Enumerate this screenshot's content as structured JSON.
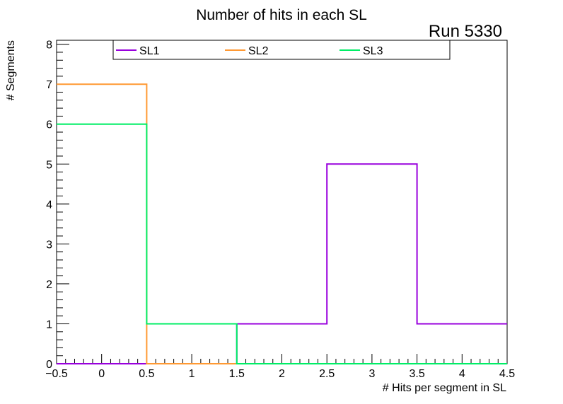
{
  "chart_data": {
    "type": "step-histogram",
    "title": "Number of hits in each SL",
    "run_label": "Run 5330",
    "xlabel": "# Hits per segment in SL",
    "ylabel": "# Segments",
    "xlim": [
      -0.5,
      4.5
    ],
    "ylim": [
      0,
      8.1
    ],
    "x_ticks": [
      -0.5,
      0,
      0.5,
      1,
      1.5,
      2,
      2.5,
      3,
      3.5,
      4,
      4.5
    ],
    "x_tick_labels": [
      "−0.5",
      "0",
      "0.5",
      "1",
      "1.5",
      "2",
      "2.5",
      "3",
      "3.5",
      "4",
      "4.5"
    ],
    "y_ticks": [
      0,
      1,
      2,
      3,
      4,
      5,
      6,
      7,
      8
    ],
    "y_tick_labels": [
      "0",
      "1",
      "2",
      "3",
      "4",
      "5",
      "6",
      "7",
      "8"
    ],
    "bin_edges": [
      -0.5,
      0.5,
      1.5,
      2.5,
      3.5,
      4.5
    ],
    "series": [
      {
        "name": "SL1",
        "color": "#9900dd",
        "values": [
          0,
          0,
          1,
          5,
          1
        ]
      },
      {
        "name": "SL2",
        "color": "#ff9933",
        "values": [
          7,
          0,
          0,
          0,
          0
        ]
      },
      {
        "name": "SL3",
        "color": "#00ee66",
        "values": [
          6,
          1,
          0,
          0,
          0
        ]
      }
    ]
  }
}
